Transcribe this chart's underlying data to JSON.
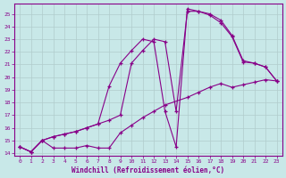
{
  "xlabel": "Windchill (Refroidissement éolien,°C)",
  "bg_color": "#c8e8e8",
  "grid_color": "#b0cccc",
  "line_color": "#880088",
  "xlim": [
    -0.5,
    23.5
  ],
  "ylim": [
    13.8,
    25.8
  ],
  "yticks": [
    14,
    15,
    16,
    17,
    18,
    19,
    20,
    21,
    22,
    23,
    24,
    25
  ],
  "xticks": [
    0,
    1,
    2,
    3,
    4,
    5,
    6,
    7,
    8,
    9,
    10,
    11,
    12,
    13,
    14,
    15,
    16,
    17,
    18,
    19,
    20,
    21,
    22,
    23
  ],
  "line1_x": [
    0,
    1,
    2,
    3,
    4,
    5,
    6,
    7,
    8,
    9,
    10,
    11,
    12,
    13,
    15,
    16,
    17,
    18,
    19,
    20,
    21,
    22,
    23
  ],
  "line1_y": [
    14.5,
    14.1,
    15.0,
    14.4,
    14.4,
    14.4,
    14.6,
    14.4,
    14.4,
    15.6,
    16.2,
    16.8,
    17.3,
    17.8,
    18.4,
    18.8,
    19.2,
    19.5,
    19.2,
    19.4,
    19.6,
    19.8,
    19.7
  ],
  "line2_x": [
    0,
    1,
    2,
    3,
    4,
    5,
    6,
    7,
    8,
    9,
    10,
    11,
    12,
    13,
    14,
    15,
    16,
    17,
    18,
    19,
    20,
    21,
    22,
    23
  ],
  "line2_y": [
    14.5,
    14.1,
    15.0,
    15.3,
    15.5,
    15.7,
    16.0,
    16.3,
    16.6,
    17.0,
    21.1,
    22.1,
    23.0,
    22.8,
    17.3,
    25.2,
    25.2,
    24.9,
    24.3,
    23.2,
    21.2,
    21.1,
    20.8,
    19.7
  ],
  "line3_x": [
    0,
    1,
    2,
    3,
    4,
    5,
    6,
    7,
    8,
    9,
    10,
    11,
    12,
    13,
    14,
    15,
    16,
    17,
    18,
    19,
    20,
    21,
    22,
    23
  ],
  "line3_y": [
    14.5,
    14.1,
    15.0,
    15.3,
    15.5,
    15.7,
    16.0,
    16.3,
    19.3,
    21.1,
    22.1,
    23.0,
    22.8,
    17.3,
    14.5,
    25.4,
    25.2,
    25.0,
    24.5,
    23.3,
    21.3,
    21.1,
    20.8,
    19.7
  ]
}
